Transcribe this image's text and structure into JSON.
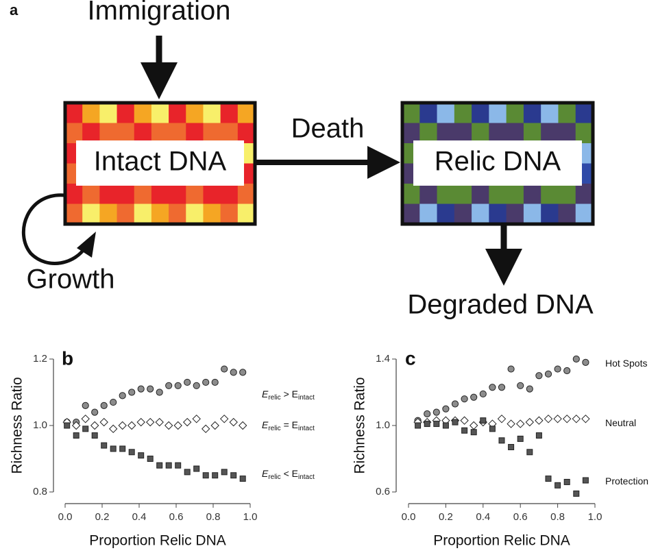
{
  "diagram": {
    "panel": "a",
    "inputs": [
      "Immigration",
      "Growth"
    ],
    "nodes": [
      "Intact DNA",
      "Relic DNA"
    ],
    "edges": [
      "Death"
    ],
    "outputs": [
      "Degraded DNA"
    ]
  },
  "chart_data": [
    {
      "type": "scatter",
      "panel": "b",
      "x_label": "Proportion Relic DNA",
      "y_label": "Richness Ratio",
      "x": [
        0.01,
        0.06,
        0.11,
        0.16,
        0.21,
        0.26,
        0.31,
        0.36,
        0.41,
        0.46,
        0.51,
        0.56,
        0.61,
        0.66,
        0.71,
        0.76,
        0.81,
        0.86,
        0.91,
        0.96
      ],
      "xlim": [
        0,
        1
      ],
      "ylim": [
        0.8,
        1.2
      ],
      "xticks": [
        {
          "value": 0,
          "label": "0.0"
        },
        0.2,
        0.4,
        0.6,
        0.8,
        {
          "value": 1,
          "label": "1.0"
        }
      ],
      "yticks": [
        0.8,
        {
          "value": 1,
          "label": "1.0"
        },
        1.2
      ],
      "series": [
        {
          "name": [
            "E",
            "relic",
            " > E",
            "intact"
          ],
          "marker": "circle",
          "color": "#8c8c8c",
          "values": [
            1.01,
            1.01,
            1.06,
            1.04,
            1.06,
            1.07,
            1.09,
            1.1,
            1.11,
            1.11,
            1.1,
            1.12,
            1.12,
            1.13,
            1.12,
            1.13,
            1.13,
            1.17,
            1.16,
            1.16
          ]
        },
        {
          "name": [
            "E",
            "relic",
            " = E",
            "intact"
          ],
          "marker": "diamond",
          "color": "#ffffff",
          "values": [
            1.01,
            1.0,
            1.02,
            1.0,
            1.01,
            0.99,
            1.0,
            1.0,
            1.01,
            1.01,
            1.01,
            1.0,
            1.0,
            1.01,
            1.02,
            0.99,
            1.0,
            1.02,
            1.01,
            1.0
          ]
        },
        {
          "name": [
            "E",
            "relic",
            " < E",
            "intact"
          ],
          "marker": "square",
          "color": "#555555",
          "values": [
            1.0,
            0.97,
            0.99,
            0.97,
            0.94,
            0.93,
            0.93,
            0.92,
            0.91,
            0.9,
            0.88,
            0.88,
            0.88,
            0.86,
            0.87,
            0.85,
            0.85,
            0.86,
            0.85,
            0.84
          ]
        }
      ]
    },
    {
      "type": "scatter",
      "panel": "c",
      "x_label": "Proportion Relic DNA",
      "y_label": "Richness Ratio",
      "x": [
        0.05,
        0.1,
        0.15,
        0.2,
        0.25,
        0.3,
        0.35,
        0.4,
        0.45,
        0.5,
        0.55,
        0.6,
        0.65,
        0.7,
        0.75,
        0.8,
        0.85,
        0.9,
        0.95
      ],
      "xlim": [
        0,
        1
      ],
      "ylim": [
        0.6,
        1.4
      ],
      "xticks": [
        {
          "value": 0,
          "label": "0.0"
        },
        0.2,
        0.4,
        0.6,
        0.8,
        {
          "value": 1,
          "label": "1.0"
        }
      ],
      "yticks": [
        0.6,
        {
          "value": 1,
          "label": "1.0"
        },
        1.4
      ],
      "series": [
        {
          "name": [
            "Hot Spots"
          ],
          "marker": "circle",
          "color": "#8c8c8c",
          "values": [
            1.03,
            1.07,
            1.08,
            1.1,
            1.13,
            1.16,
            1.17,
            1.19,
            1.23,
            1.23,
            1.34,
            1.24,
            1.22,
            1.3,
            1.31,
            1.34,
            1.33,
            1.4,
            1.38
          ]
        },
        {
          "name": [
            "Neutral"
          ],
          "marker": "diamond",
          "color": "#ffffff",
          "values": [
            1.02,
            1.02,
            1.03,
            1.03,
            1.03,
            1.03,
            1.0,
            1.02,
            1.01,
            1.04,
            1.01,
            1.01,
            1.02,
            1.03,
            1.04,
            1.04,
            1.04,
            1.04,
            1.04
          ]
        },
        {
          "name": [
            "Protection"
          ],
          "marker": "square",
          "color": "#555555",
          "values": [
            1.0,
            1.01,
            1.01,
            1.0,
            1.02,
            0.97,
            0.96,
            1.03,
            0.98,
            0.91,
            0.87,
            0.92,
            0.84,
            0.94,
            0.68,
            0.64,
            0.66,
            0.59,
            0.67
          ]
        }
      ]
    }
  ]
}
